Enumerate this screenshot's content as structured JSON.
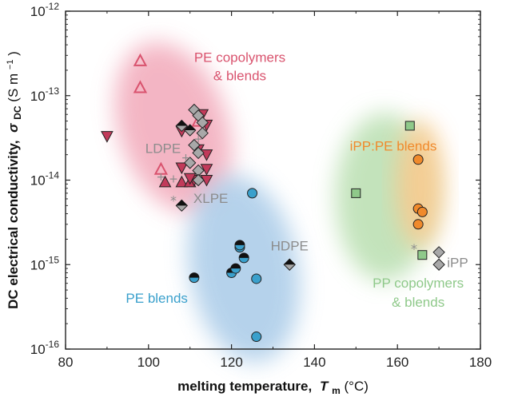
{
  "chart_data": {
    "type": "scatter",
    "xlabel": {
      "main": "melting temperature,",
      "sym": "T",
      "sub": "m",
      "unit": " (°C)"
    },
    "ylabel": {
      "main": "DC electrical conductivity,",
      "sym": "σ",
      "sub": "DC",
      "unit": " (S m",
      "sup": "−1",
      "close": ")"
    },
    "xlim": [
      80,
      180
    ],
    "ylim": [
      1e-16,
      1e-12
    ],
    "yscale": "log",
    "x_ticks": [
      {
        "v": 80,
        "label": "80"
      },
      {
        "v": 100,
        "label": "100"
      },
      {
        "v": 120,
        "label": "120"
      },
      {
        "v": 140,
        "label": "140"
      },
      {
        "v": 160,
        "label": "160"
      },
      {
        "v": 180,
        "label": "180"
      }
    ],
    "y_ticks": [
      {
        "exp": -16,
        "base": "10",
        "sup": "-16"
      },
      {
        "exp": -15,
        "base": "10",
        "sup": "-15"
      },
      {
        "exp": -14,
        "base": "10",
        "sup": "-14"
      },
      {
        "exp": -13,
        "base": "10",
        "sup": "-13"
      },
      {
        "exp": -12,
        "base": "10",
        "sup": "-12"
      }
    ],
    "colors": {
      "pe_copolymer": "#d9536e",
      "pe_copolymer_fill": "#c23a5a",
      "pe_blend": "#3aa0cc",
      "pp_copolymer": "#8fc98a",
      "ipp_pe": "#f08a2c",
      "grey": "#a8a8a8",
      "black": "#111111",
      "region_pink": "#f2a9ba",
      "region_blue": "#a9cbe8",
      "region_green": "#b9dfb0",
      "region_orange": "#fbc98c"
    },
    "annotations": [
      {
        "text": "PE copolymers",
        "x": 122,
        "logy": -12.6,
        "color": "#d9536e"
      },
      {
        "text": "& blends",
        "x": 122,
        "logy": -12.82,
        "color": "#d9536e"
      },
      {
        "text": "LDPE",
        "x": 103.5,
        "logy": -13.68,
        "color": "#8c8c8c"
      },
      {
        "text": "XLPE",
        "x": 115,
        "logy": -14.27,
        "color": "#8c8c8c"
      },
      {
        "text": "HDPE",
        "x": 134,
        "logy": -14.83,
        "color": "#8c8c8c"
      },
      {
        "text": "PE blends",
        "x": 102,
        "logy": -15.45,
        "color": "#3aa0cc"
      },
      {
        "text": "iPP:PE blends",
        "x": 159,
        "logy": -13.65,
        "color": "#f08a2c"
      },
      {
        "text": "iPP",
        "x": 174.5,
        "logy": -15.03,
        "color": "#8c8c8c"
      },
      {
        "text": "PP copolymers",
        "x": 165,
        "logy": -15.27,
        "color": "#8fc98a"
      },
      {
        "text": "& blends",
        "x": 165,
        "logy": -15.5,
        "color": "#8fc98a"
      }
    ],
    "series": [
      {
        "marker": "triangle-up-open",
        "color": "#d9536e",
        "points": [
          [
            98,
            2.6e-13
          ],
          [
            98,
            1.25e-13
          ],
          [
            103,
            1.35e-14
          ],
          [
            112,
            5e-14
          ]
        ]
      },
      {
        "marker": "triangle-up",
        "color": "#c23a5a",
        "points": [
          [
            104,
            9.5e-15
          ],
          [
            108,
            9.5e-15
          ],
          [
            110,
            9.5e-15
          ]
        ]
      },
      {
        "marker": "triangle-down",
        "color": "#c23a5a",
        "points": [
          [
            90,
            3.3e-14
          ],
          [
            108,
            3.8e-14
          ],
          [
            112,
            2.3e-14
          ],
          [
            113,
            6e-14
          ],
          [
            114,
            4.5e-14
          ],
          [
            114,
            2e-14
          ],
          [
            114,
            1.35e-14
          ],
          [
            114,
            1e-14
          ],
          [
            108,
            1.4e-14
          ],
          [
            111,
            1e-14
          ],
          [
            110,
            1.05e-14
          ]
        ]
      },
      {
        "marker": "diamond",
        "color": "#a8a8a8",
        "points": [
          [
            111,
            6.8e-14
          ],
          [
            112,
            5.8e-14
          ],
          [
            113,
            4.8e-14
          ],
          [
            113,
            3.6e-14
          ],
          [
            111,
            2.6e-14
          ],
          [
            112,
            2.1e-14
          ],
          [
            110,
            1.6e-14
          ],
          [
            112,
            1.3e-14
          ],
          [
            112,
            1e-14
          ],
          [
            170,
            1.4e-15
          ],
          [
            170,
            1e-15
          ]
        ]
      },
      {
        "marker": "diamond-half",
        "color": "#111111",
        "points": [
          [
            108,
            4.4e-14
          ],
          [
            110,
            3.9e-14
          ],
          [
            108,
            5e-15
          ],
          [
            134,
            1e-15
          ]
        ]
      },
      {
        "marker": "circle",
        "color": "#3aa0cc",
        "points": [
          [
            125,
            7e-15
          ],
          [
            126,
            6.8e-16
          ],
          [
            126,
            1.4e-16
          ]
        ]
      },
      {
        "marker": "circle-half",
        "color": "#3aa0cc",
        "points": [
          [
            111,
            7e-16
          ],
          [
            120,
            8e-16
          ],
          [
            121,
            9e-16
          ],
          [
            122,
            1.6e-15
          ],
          [
            122,
            1.7e-15
          ],
          [
            123,
            1.2e-15
          ]
        ]
      },
      {
        "marker": "square",
        "color": "#8fc98a",
        "points": [
          [
            150,
            7e-15
          ],
          [
            163,
            4.4e-14
          ],
          [
            166,
            1.3e-15
          ]
        ]
      },
      {
        "marker": "circle",
        "color": "#f08a2c",
        "points": [
          [
            165,
            1.75e-14
          ],
          [
            165,
            4.6e-15
          ],
          [
            166,
            4.2e-15
          ],
          [
            165,
            3e-15
          ]
        ]
      },
      {
        "marker": "asterisk",
        "color": "#8c8c8c",
        "points": [
          [
            106,
            5.8e-15
          ],
          [
            164,
            1.55e-15
          ]
        ]
      },
      {
        "marker": "plus",
        "color": "#8c8c8c",
        "points": [
          [
            103,
            1.1e-14
          ],
          [
            106,
            1.05e-14
          ],
          [
            109,
            1.85e-14
          ],
          [
            112,
            3.1e-14
          ]
        ]
      }
    ]
  }
}
